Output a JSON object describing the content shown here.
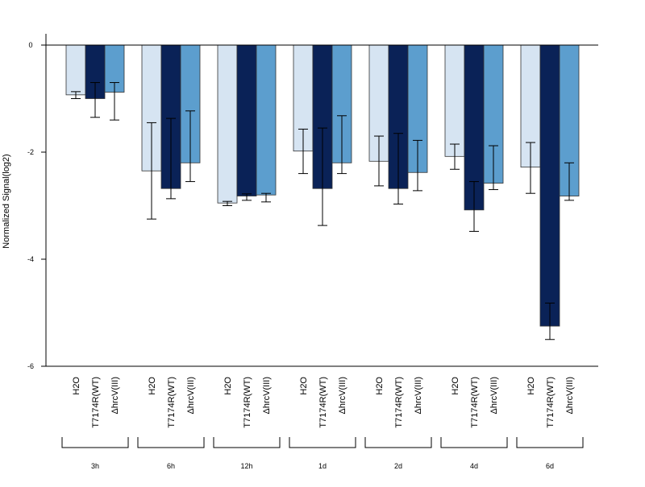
{
  "chart_data": {
    "type": "bar",
    "title": "",
    "xlabel": "",
    "ylabel": "Normalized Signal(log2)",
    "ylim": [
      -6,
      0
    ],
    "yticks": [
      0,
      -2,
      -4,
      -6
    ],
    "grid": false,
    "series_labels": [
      "H2O",
      "T7174R(WT)",
      "ΔhrcV(III)"
    ],
    "series_colors": [
      "#d6e4f2",
      "#0a2257",
      "#5c9ece"
    ],
    "groups": [
      {
        "label": "3h",
        "values": [
          -0.93,
          -1.0,
          -0.88
        ],
        "errors": [
          [
            -1.0,
            -0.87
          ],
          [
            -1.35,
            -0.7
          ],
          [
            -1.4,
            -0.7
          ]
        ]
      },
      {
        "label": "6h",
        "values": [
          -2.35,
          -2.68,
          -2.2
        ],
        "errors": [
          [
            -3.25,
            -1.45
          ],
          [
            -2.87,
            -1.37
          ],
          [
            -2.55,
            -1.23
          ]
        ]
      },
      {
        "label": "12h",
        "values": [
          -2.95,
          -2.82,
          -2.8
        ],
        "errors": [
          [
            -3.0,
            -2.92
          ],
          [
            -2.9,
            -2.78
          ],
          [
            -2.93,
            -2.77
          ]
        ]
      },
      {
        "label": "1d",
        "values": [
          -1.98,
          -2.68,
          -2.2
        ],
        "errors": [
          [
            -2.4,
            -1.57
          ],
          [
            -3.37,
            -1.55
          ],
          [
            -2.4,
            -1.32
          ]
        ]
      },
      {
        "label": "2d",
        "values": [
          -2.17,
          -2.68,
          -2.38
        ],
        "errors": [
          [
            -2.63,
            -1.7
          ],
          [
            -2.97,
            -1.65
          ],
          [
            -2.72,
            -1.78
          ]
        ]
      },
      {
        "label": "4d",
        "values": [
          -2.08,
          -3.08,
          -2.58
        ],
        "errors": [
          [
            -2.32,
            -1.85
          ],
          [
            -3.48,
            -2.55
          ],
          [
            -2.7,
            -1.88
          ]
        ]
      },
      {
        "label": "6d",
        "values": [
          -2.28,
          -5.25,
          -2.82
        ],
        "errors": [
          [
            -2.77,
            -1.82
          ],
          [
            -5.5,
            -4.82
          ],
          [
            -2.9,
            -2.2
          ]
        ]
      }
    ]
  }
}
